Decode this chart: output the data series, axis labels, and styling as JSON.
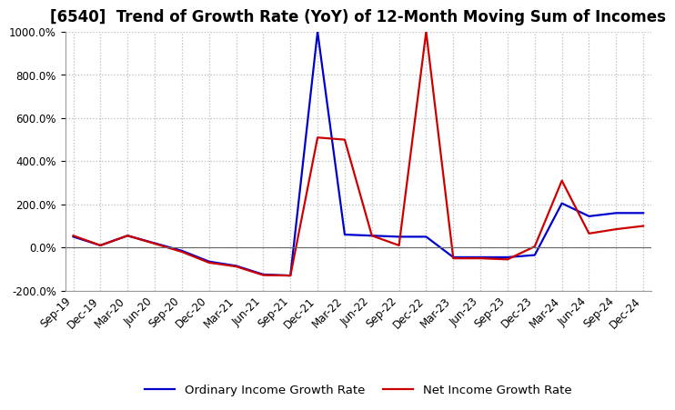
{
  "title": "[6540]  Trend of Growth Rate (YoY) of 12-Month Moving Sum of Incomes",
  "x_labels": [
    "Sep-19",
    "Dec-19",
    "Mar-20",
    "Jun-20",
    "Sep-20",
    "Dec-20",
    "Mar-21",
    "Jun-21",
    "Sep-21",
    "Dec-21",
    "Mar-22",
    "Jun-22",
    "Sep-22",
    "Dec-22",
    "Mar-23",
    "Jun-23",
    "Sep-23",
    "Dec-23",
    "Mar-24",
    "Jun-24",
    "Sep-24",
    "Dec-24"
  ],
  "ordinary_income": [
    50,
    10,
    55,
    20,
    -15,
    -65,
    -85,
    -125,
    -130,
    1000,
    60,
    55,
    50,
    50,
    -45,
    -45,
    -45,
    -35,
    205,
    145,
    160,
    160
  ],
  "net_income": [
    55,
    10,
    55,
    18,
    -20,
    -70,
    -88,
    -128,
    -130,
    510,
    500,
    55,
    10,
    1000,
    -50,
    -50,
    -55,
    5,
    310,
    65,
    85,
    100
  ],
  "ylim": [
    -200,
    1000
  ],
  "yticks": [
    -200,
    0,
    200,
    400,
    600,
    800,
    1000
  ],
  "ordinary_color": "#0000cc",
  "net_color": "#cc0000",
  "bg_color": "#ffffff",
  "grid_color": "#bbbbbb",
  "legend_ordinary": "Ordinary Income Growth Rate",
  "legend_net": "Net Income Growth Rate",
  "title_fontsize": 12,
  "label_fontsize": 8.5
}
